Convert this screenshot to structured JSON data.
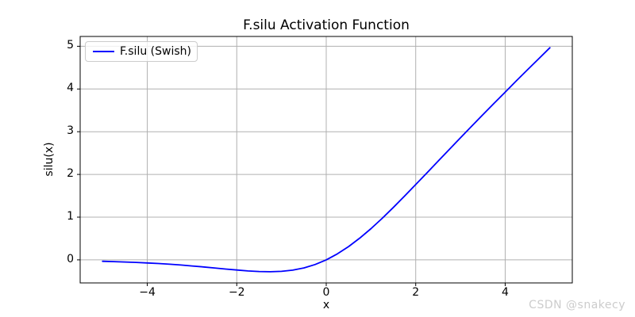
{
  "legend": {
    "label": "F.silu (Swish)",
    "line_color": "#0000ff"
  },
  "watermark": {
    "text": "CSDN @snakecy",
    "color": "#cccccc"
  },
  "colors": {
    "line": "#0000ff",
    "grid": "#b0b0b0",
    "spine": "#000000",
    "text": "#000000",
    "background": "#ffffff"
  },
  "chart_data": {
    "type": "line",
    "title": "F.silu Activation Function",
    "xlabel": "x",
    "ylabel": "silu(x)",
    "xlim": [
      -5.5,
      5.5
    ],
    "ylim": [
      -0.54,
      5.23
    ],
    "grid": true,
    "legend_position": "upper left",
    "xticks": {
      "values": [
        -4,
        -2,
        0,
        2,
        4
      ],
      "labels": [
        "−4",
        "−2",
        "0",
        "2",
        "4"
      ]
    },
    "yticks": {
      "values": [
        0,
        1,
        2,
        3,
        4,
        5
      ],
      "labels": [
        "0",
        "1",
        "2",
        "3",
        "4",
        "5"
      ]
    },
    "series": [
      {
        "name": "F.silu (Swish)",
        "color": "#0000ff",
        "x": [
          -5,
          -4.75,
          -4.5,
          -4.25,
          -4,
          -3.75,
          -3.5,
          -3.25,
          -3,
          -2.75,
          -2.5,
          -2.25,
          -2,
          -1.75,
          -1.5,
          -1.25,
          -1,
          -0.75,
          -0.5,
          -0.25,
          0,
          0.25,
          0.5,
          0.75,
          1,
          1.25,
          1.5,
          1.75,
          2,
          2.25,
          2.5,
          2.75,
          3,
          3.25,
          3.5,
          3.75,
          4,
          4.25,
          4.5,
          4.75,
          5
        ],
        "y": [
          -0.0335,
          -0.0407,
          -0.0494,
          -0.0598,
          -0.0719,
          -0.0862,
          -0.1026,
          -0.1213,
          -0.1423,
          -0.1652,
          -0.1896,
          -0.2145,
          -0.2384,
          -0.2591,
          -0.2736,
          -0.2784,
          -0.2689,
          -0.2406,
          -0.1888,
          -0.1095,
          0,
          0.1405,
          0.3112,
          0.5094,
          0.7311,
          0.9716,
          1.2264,
          1.4909,
          1.7616,
          2.0355,
          2.3104,
          2.5848,
          2.8577,
          3.1287,
          3.3974,
          3.6638,
          3.9281,
          4.1902,
          4.4506,
          4.7093,
          4.9665
        ]
      }
    ]
  }
}
